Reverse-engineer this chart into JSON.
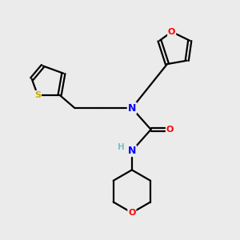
{
  "bg_color": "#ebebeb",
  "atom_colors": {
    "N": "#0000ff",
    "O": "#ff0000",
    "S": "#ccaa00",
    "C": "#000000",
    "H": "#7fbfbf"
  },
  "bond_color": "#000000",
  "bond_width": 1.6,
  "font_size": 8.5
}
